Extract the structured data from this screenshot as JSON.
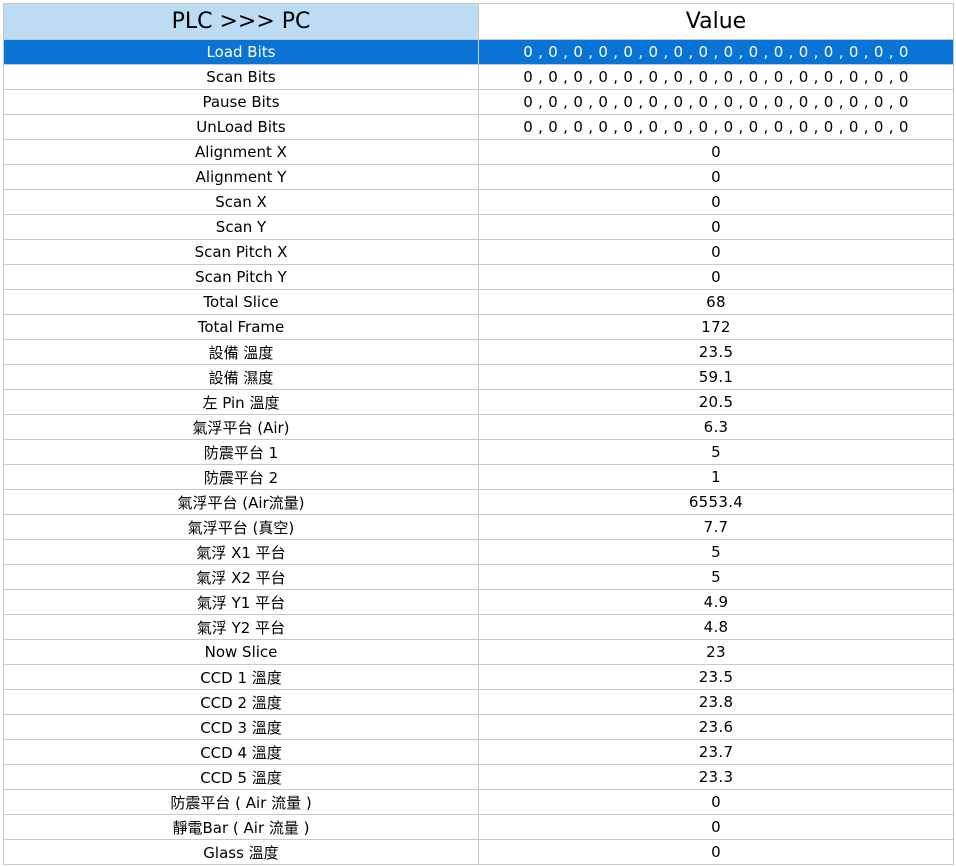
{
  "table": {
    "headers": {
      "name": "PLC >>> PC",
      "value": "Value"
    },
    "selected_index": 0,
    "rows": [
      {
        "name": "Load Bits",
        "value": "0 , 0 , 0 , 0 , 0 , 0 , 0 , 0 , 0 , 0 , 0 , 0 , 0 , 0 , 0 , 0"
      },
      {
        "name": "Scan Bits",
        "value": "0 , 0 , 0 , 0 , 0 , 0 , 0 , 0 , 0 , 0 , 0 , 0 , 0 , 0 , 0 , 0"
      },
      {
        "name": "Pause Bits",
        "value": "0 , 0 , 0 , 0 , 0 , 0 , 0 , 0 , 0 , 0 , 0 , 0 , 0 , 0 , 0 , 0"
      },
      {
        "name": "UnLoad Bits",
        "value": "0 , 0 , 0 , 0 , 0 , 0 , 0 , 0 , 0 , 0 , 0 , 0 , 0 , 0 , 0 , 0"
      },
      {
        "name": "Alignment X",
        "value": "0"
      },
      {
        "name": "Alignment Y",
        "value": "0"
      },
      {
        "name": "Scan X",
        "value": "0"
      },
      {
        "name": "Scan Y",
        "value": "0"
      },
      {
        "name": "Scan Pitch X",
        "value": "0"
      },
      {
        "name": "Scan Pitch Y",
        "value": "0"
      },
      {
        "name": "Total Slice",
        "value": "68"
      },
      {
        "name": "Total Frame",
        "value": "172"
      },
      {
        "name": "設備 溫度",
        "value": "23.5"
      },
      {
        "name": "設備 濕度",
        "value": "59.1"
      },
      {
        "name": "左 Pin 溫度",
        "value": "20.5"
      },
      {
        "name": "氣浮平台 (Air)",
        "value": "6.3"
      },
      {
        "name": "防震平台 1",
        "value": "5"
      },
      {
        "name": "防震平台 2",
        "value": "1"
      },
      {
        "name": "氣浮平台 (Air流量)",
        "value": "6553.4"
      },
      {
        "name": "氣浮平台 (真空)",
        "value": "7.7"
      },
      {
        "name": "氣浮 X1 平台",
        "value": "5"
      },
      {
        "name": "氣浮 X2 平台",
        "value": "5"
      },
      {
        "name": "氣浮 Y1 平台",
        "value": "4.9"
      },
      {
        "name": "氣浮 Y2 平台",
        "value": "4.8"
      },
      {
        "name": "Now Slice",
        "value": "23"
      },
      {
        "name": "CCD 1 溫度",
        "value": "23.5"
      },
      {
        "name": "CCD 2 溫度",
        "value": "23.8"
      },
      {
        "name": "CCD 3 溫度",
        "value": "23.6"
      },
      {
        "name": "CCD 4 溫度",
        "value": "23.7"
      },
      {
        "name": "CCD 5 溫度",
        "value": "23.3"
      },
      {
        "name": "防震平台 ( Air 流量 )",
        "value": "0"
      },
      {
        "name": "靜電Bar ( Air 流量 )",
        "value": "0"
      },
      {
        "name": "Glass 溫度",
        "value": "0"
      }
    ]
  },
  "colors": {
    "header_name_bg": "#bcdcf3",
    "header_value_bg": "#ffffff",
    "selected_row_bg": "#0a74d6",
    "selected_row_text": "#ffffff",
    "grid_line": "#c8c8c8"
  }
}
